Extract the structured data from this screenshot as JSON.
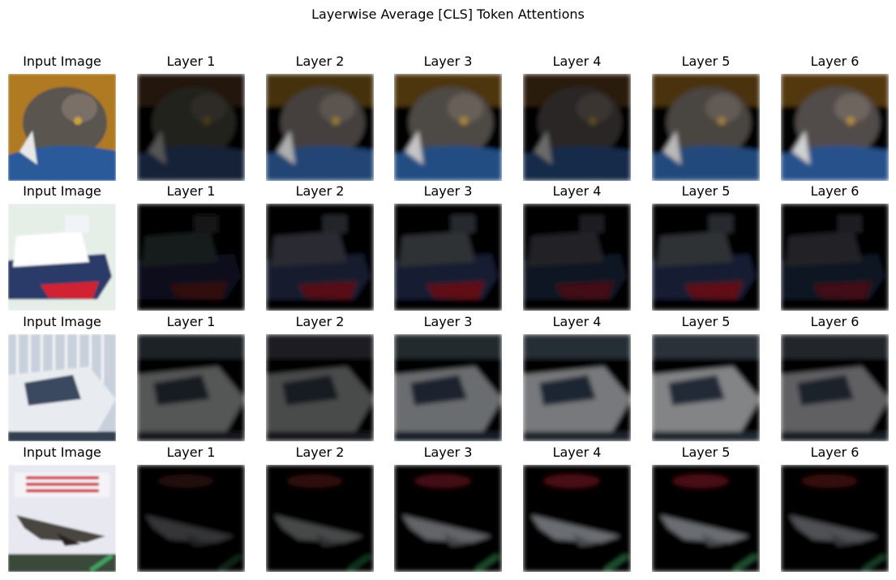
{
  "figure": {
    "title": "Layerwise Average [CLS] Token Attentions",
    "rows": [
      {
        "subject": "cat",
        "palette": {
          "bg": "#b07a20",
          "body": "#5a5450",
          "fore": "#2a5a9a",
          "accent": "#e8e8e8"
        },
        "panels": [
          {
            "label": "Input Image",
            "brightness": 1.0
          },
          {
            "label": "Layer 1",
            "brightness": 0.35
          },
          {
            "label": "Layer 2",
            "brightness": 0.75
          },
          {
            "label": "Layer 3",
            "brightness": 0.85
          },
          {
            "label": "Layer 4",
            "brightness": 0.45
          },
          {
            "label": "Layer 5",
            "brightness": 0.8
          },
          {
            "label": "Layer 6",
            "brightness": 0.9
          }
        ]
      },
      {
        "subject": "ship",
        "palette": {
          "bg": "#e6eee8",
          "body": "#ffffff",
          "fore": "#2a3a6a",
          "accent": "#d02030"
        },
        "panels": [
          {
            "label": "Input Image",
            "brightness": 1.0
          },
          {
            "label": "Layer 1",
            "brightness": 0.22
          },
          {
            "label": "Layer 2",
            "brightness": 0.4
          },
          {
            "label": "Layer 3",
            "brightness": 0.45
          },
          {
            "label": "Layer 4",
            "brightness": 0.3
          },
          {
            "label": "Layer 5",
            "brightness": 0.45
          },
          {
            "label": "Layer 6",
            "brightness": 0.3
          }
        ]
      },
      {
        "subject": "boat",
        "palette": {
          "bg": "#c8d0dc",
          "body": "#e8ecf0",
          "fore": "#3a4a60",
          "accent": "#90a8c0"
        },
        "panels": [
          {
            "label": "Input Image",
            "brightness": 1.0
          },
          {
            "label": "Layer 1",
            "brightness": 0.35
          },
          {
            "label": "Layer 2",
            "brightness": 0.3
          },
          {
            "label": "Layer 3",
            "brightness": 0.45
          },
          {
            "label": "Layer 4",
            "brightness": 0.5
          },
          {
            "label": "Layer 5",
            "brightness": 0.55
          },
          {
            "label": "Layer 6",
            "brightness": 0.4
          }
        ]
      },
      {
        "subject": "airplane",
        "palette": {
          "bg": "#e8e8f0",
          "body": "#4a4440",
          "fore": "#2a3a2a",
          "accent": "#d02a3a"
        },
        "panels": [
          {
            "label": "Input Image",
            "brightness": 1.0
          },
          {
            "label": "Layer 1",
            "brightness": 0.25
          },
          {
            "label": "Layer 2",
            "brightness": 0.35
          },
          {
            "label": "Layer 3",
            "brightness": 0.5
          },
          {
            "label": "Layer 4",
            "brightness": 0.55
          },
          {
            "label": "Layer 5",
            "brightness": 0.55
          },
          {
            "label": "Layer 6",
            "brightness": 0.4
          }
        ]
      }
    ]
  }
}
